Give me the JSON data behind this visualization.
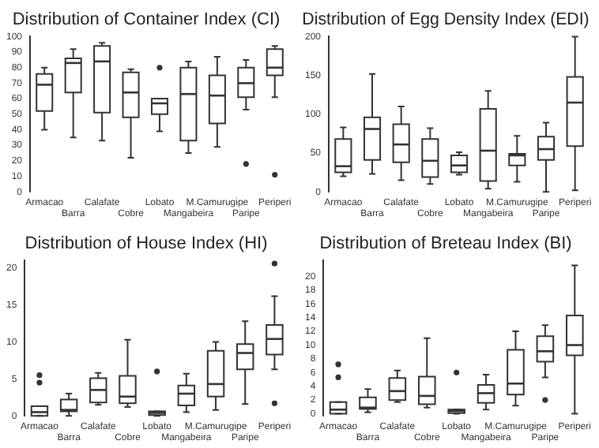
{
  "chart_data": [
    {
      "type": "box",
      "title": "Distribution of Container Index (CI)",
      "categories": [
        "Armacao",
        "Barra",
        "Calafate",
        "Cobre",
        "Lobato",
        "Mangabeira",
        "M.Camurugipe",
        "Paripe",
        "Periperi"
      ],
      "ylim": [
        0,
        100
      ],
      "yticks": [
        0,
        10,
        20,
        30,
        40,
        50,
        60,
        70,
        80,
        90,
        100
      ],
      "grid": false,
      "color": "#333333",
      "boxes": [
        {
          "low": 40,
          "q1": 52,
          "median": 69,
          "q3": 76,
          "high": 80
        },
        {
          "low": 35,
          "q1": 64,
          "median": 83,
          "q3": 86,
          "high": 92
        },
        {
          "low": 33,
          "q1": 51,
          "median": 84,
          "q3": 94,
          "high": 96
        },
        {
          "low": 22,
          "q1": 48,
          "median": 64,
          "q3": 77,
          "high": 79
        },
        {
          "low": 39,
          "q1": 50,
          "median": 57,
          "q3": 60,
          "high": 60,
          "outliers": [
            80
          ]
        },
        {
          "low": 25,
          "q1": 33,
          "median": 63,
          "q3": 80,
          "high": 84
        },
        {
          "low": 29,
          "q1": 44,
          "median": 62,
          "q3": 75,
          "high": 87
        },
        {
          "low": 53,
          "q1": 61,
          "median": 70,
          "q3": 80,
          "high": 85,
          "outliers": [
            18
          ]
        },
        {
          "low": 61,
          "q1": 75,
          "median": 80,
          "q3": 92,
          "high": 94,
          "outliers": [
            11
          ]
        }
      ]
    },
    {
      "type": "box",
      "title": "Distribution of Egg Density Index (EDI)",
      "categories": [
        "Armacao",
        "Barra",
        "Calafate",
        "Cobre",
        "Lobato",
        "Mangabeira",
        "M.Camurugipe",
        "Paripe",
        "Periperi"
      ],
      "ylim": [
        0,
        200
      ],
      "yticks": [
        0,
        50,
        100,
        150,
        200
      ],
      "grid": false,
      "color": "#333333",
      "boxes": [
        {
          "low": 20,
          "q1": 25,
          "median": 33,
          "q3": 68,
          "high": 83
        },
        {
          "low": 23,
          "q1": 41,
          "median": 81,
          "q3": 96,
          "high": 152
        },
        {
          "low": 15,
          "q1": 38,
          "median": 61,
          "q3": 87,
          "high": 110
        },
        {
          "low": 10,
          "q1": 19,
          "median": 40,
          "q3": 68,
          "high": 82
        },
        {
          "low": 22,
          "q1": 25,
          "median": 34,
          "q3": 47,
          "high": 51
        },
        {
          "low": 4,
          "q1": 14,
          "median": 53,
          "q3": 107,
          "high": 130
        },
        {
          "low": 13,
          "q1": 34,
          "median": 47,
          "q3": 49,
          "high": 72
        },
        {
          "low": 0,
          "q1": 41,
          "median": 55,
          "q3": 71,
          "high": 89
        },
        {
          "low": 2,
          "q1": 59,
          "median": 115,
          "q3": 148,
          "high": 200
        }
      ]
    },
    {
      "type": "box",
      "title": "Distribution of House Index (HI)",
      "categories": [
        "Armacao",
        "Barra",
        "Calafate",
        "Cobre",
        "Lobato",
        "Mangabeira",
        "M.Camurugipe",
        "Paripe",
        "Periperi"
      ],
      "ylim": [
        0,
        21
      ],
      "yticks": [
        0,
        5,
        10,
        15,
        20
      ],
      "grid": false,
      "color": "#333333",
      "boxes": [
        {
          "low": 0,
          "q1": 0,
          "median": 0.5,
          "q3": 1.3,
          "high": 1.3,
          "outliers": [
            4.5,
            5.5
          ]
        },
        {
          "low": 0,
          "q1": 0.6,
          "median": 0.8,
          "q3": 2.2,
          "high": 3
        },
        {
          "low": 1.5,
          "q1": 1.8,
          "median": 3.5,
          "q3": 5.1,
          "high": 5.8
        },
        {
          "low": 1.2,
          "q1": 1.7,
          "median": 2.6,
          "q3": 5.4,
          "high": 10.3
        },
        {
          "low": 0,
          "q1": 0.1,
          "median": 0.4,
          "q3": 0.6,
          "high": 0.6,
          "outliers": [
            6
          ]
        },
        {
          "low": 0.5,
          "q1": 1.4,
          "median": 3,
          "q3": 4.1,
          "high": 5.7
        },
        {
          "low": 0.8,
          "q1": 2.6,
          "median": 4.3,
          "q3": 8.8,
          "high": 10
        },
        {
          "low": 1.6,
          "q1": 6.3,
          "median": 8.5,
          "q3": 9.7,
          "high": 12.8
        },
        {
          "low": 6.3,
          "q1": 8.3,
          "median": 10.4,
          "q3": 12.3,
          "high": 16.2,
          "outliers": [
            1.7,
            20.6
          ]
        }
      ]
    },
    {
      "type": "box",
      "title": "Distribution of Breteau Index (BI)",
      "categories": [
        "Armacao",
        "Barra",
        "Calafate",
        "Cobre",
        "Lobato",
        "Mangabeira",
        "M.Camurugipe",
        "Paripe",
        "Periperi"
      ],
      "ylim": [
        -0.3,
        22.3
      ],
      "yticks": [
        0,
        2,
        4,
        6,
        8,
        10,
        12,
        14,
        16,
        18,
        20
      ],
      "grid": false,
      "color": "#333333",
      "boxes": [
        {
          "low": 0,
          "q1": 0,
          "median": 0.6,
          "q3": 1.7,
          "high": 1.7,
          "outliers": [
            5.3,
            7.2
          ]
        },
        {
          "low": 0.2,
          "q1": 0.7,
          "median": 0.9,
          "q3": 2.4,
          "high": 3.6
        },
        {
          "low": 1.7,
          "q1": 2,
          "median": 3.3,
          "q3": 5.2,
          "high": 6.3
        },
        {
          "low": 0.9,
          "q1": 1.4,
          "median": 2.6,
          "q3": 5.4,
          "high": 11
        },
        {
          "low": 0,
          "q1": 0.1,
          "median": 0.4,
          "q3": 0.6,
          "high": 0.6,
          "outliers": [
            6
          ]
        },
        {
          "low": 0.6,
          "q1": 1.6,
          "median": 3,
          "q3": 4.2,
          "high": 5.7
        },
        {
          "low": 1.2,
          "q1": 2.8,
          "median": 4.4,
          "q3": 9.3,
          "high": 12
        },
        {
          "low": 5.3,
          "q1": 7.6,
          "median": 9.1,
          "q3": 11.3,
          "high": 12.9,
          "outliers": [
            2
          ]
        },
        {
          "low": 0,
          "q1": 8.5,
          "median": 10,
          "q3": 14.3,
          "high": 21.6
        }
      ]
    }
  ]
}
